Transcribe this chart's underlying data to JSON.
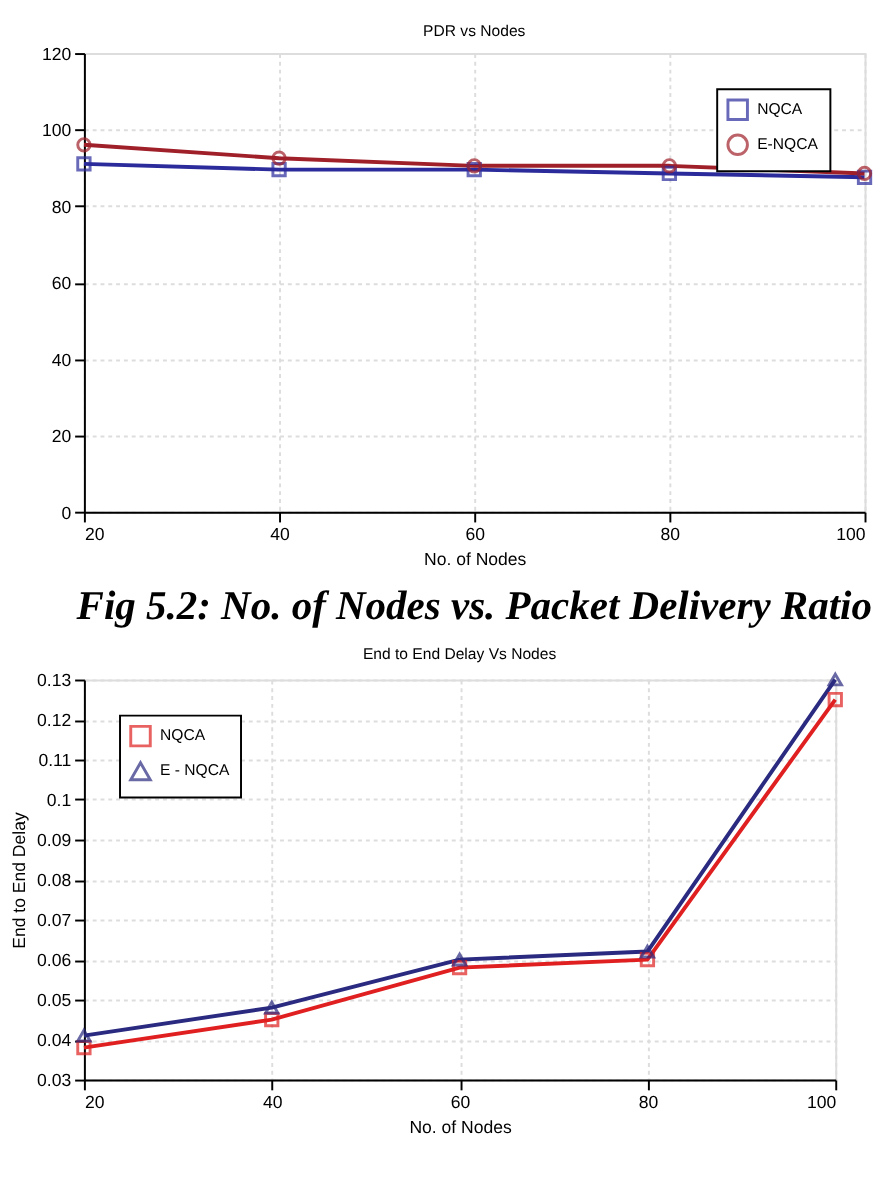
{
  "chart_data": [
    {
      "type": "line",
      "title": "PDR vs Nodes",
      "xlabel": "No. of Nodes",
      "x": [
        20,
        40,
        60,
        80,
        100
      ],
      "series": [
        {
          "name": "NQCA",
          "color": "#2b2b9c",
          "marker": "square",
          "values": [
            91,
            89.5,
            89.5,
            88.5,
            87.5
          ]
        },
        {
          "name": "E-NQCA",
          "color": "#a0202a",
          "marker": "circle",
          "values": [
            96,
            92.5,
            90.5,
            90.5,
            88.5
          ]
        }
      ],
      "xlim": [
        20,
        100
      ],
      "xticks": [
        20,
        40,
        60,
        80,
        100
      ],
      "ylim": [
        0,
        120
      ],
      "yticks": [
        0,
        20,
        40,
        60,
        80,
        100,
        120
      ],
      "grid": true,
      "legend": "top right",
      "line_style": "solid",
      "annotations": [
        "Fig 5.2:  No. of Nodes vs. Packet Delivery Ratio"
      ]
    },
    {
      "type": "line",
      "title": "End to End Delay Vs Nodes",
      "xlabel": "No. of Nodes",
      "ylabel": "End to End Delay",
      "x": [
        20,
        40,
        60,
        80,
        100
      ],
      "series": [
        {
          "name": "NQCA",
          "color": "#e02020",
          "marker": "square",
          "values": [
            0.038,
            0.045,
            0.058,
            0.06,
            0.125
          ]
        },
        {
          "name": "E - NQCA",
          "color": "#2a2a80",
          "marker": "triangle",
          "values": [
            0.041,
            0.048,
            0.06,
            0.062,
            0.13
          ]
        }
      ],
      "xlim": [
        20,
        100
      ],
      "xticks": [
        20,
        40,
        60,
        80,
        100
      ],
      "ylim": [
        0.03,
        0.13
      ],
      "yticks": [
        0.03,
        0.04,
        0.05,
        0.06,
        0.07,
        0.08,
        0.09,
        0.1,
        0.11,
        0.12,
        0.13
      ],
      "grid": true,
      "legend": "top left",
      "line_style": "solid"
    }
  ]
}
